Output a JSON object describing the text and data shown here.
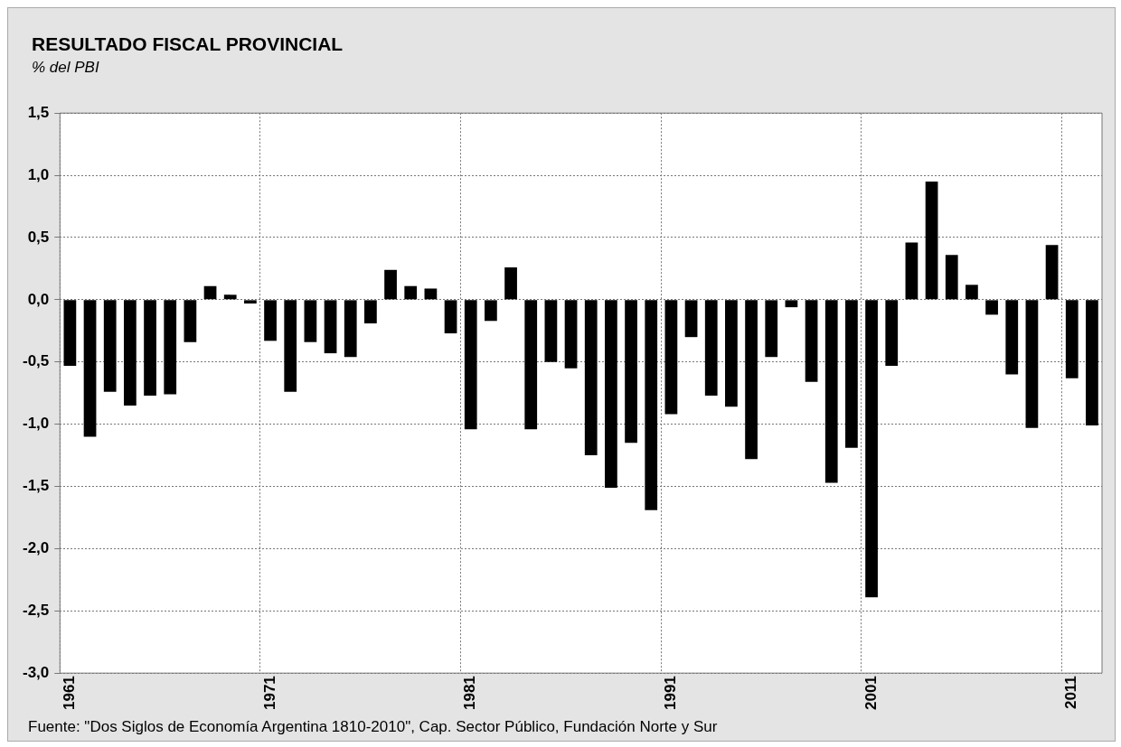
{
  "chart_data": {
    "type": "bar",
    "title": "RESULTADO FISCAL PROVINCIAL",
    "subtitle": "% del PBI",
    "categories": [
      "1961",
      null,
      null,
      null,
      null,
      null,
      null,
      null,
      null,
      null,
      "1971",
      null,
      null,
      null,
      null,
      null,
      null,
      null,
      null,
      null,
      "1981",
      null,
      null,
      null,
      null,
      null,
      null,
      null,
      null,
      null,
      "1991",
      null,
      null,
      null,
      null,
      null,
      null,
      null,
      null,
      null,
      "2001",
      null,
      null,
      null,
      null,
      null,
      null,
      null,
      null,
      null,
      "2011",
      null
    ],
    "values": [
      -0.53,
      -1.1,
      -0.74,
      -0.85,
      -0.77,
      -0.76,
      -0.34,
      0.11,
      0.04,
      -0.03,
      -0.33,
      -0.74,
      -0.34,
      -0.43,
      -0.46,
      -0.19,
      0.24,
      0.11,
      0.09,
      -0.27,
      -1.04,
      -0.17,
      0.26,
      -1.04,
      -0.5,
      -0.55,
      -1.25,
      -1.51,
      -1.15,
      -1.69,
      -0.92,
      -0.3,
      -0.77,
      -0.86,
      -1.28,
      -0.46,
      -0.06,
      -0.66,
      -1.47,
      -1.19,
      -2.39,
      -0.53,
      0.46,
      0.95,
      0.36,
      0.12,
      -0.12,
      -0.6,
      -1.03,
      0.44,
      -0.63,
      -1.01
    ],
    "color": "#000000",
    "ylim": [
      -3.0,
      1.5
    ],
    "yticks": [
      {
        "value": -3.0,
        "label": "-3,0"
      },
      {
        "value": -2.5,
        "label": "-2,5"
      },
      {
        "value": -2.0,
        "label": "-2,0"
      },
      {
        "value": -1.5,
        "label": "-1,5"
      },
      {
        "value": -1.0,
        "label": "-1,0"
      },
      {
        "value": -0.5,
        "label": "-0,5"
      },
      {
        "value": 0,
        "label": "0,0"
      },
      {
        "value": 0.5,
        "label": "0,5"
      },
      {
        "value": 1.0,
        "label": "1,0"
      },
      {
        "value": 1.5,
        "label": "1,5"
      }
    ],
    "grid": true,
    "legend": false,
    "annotations": [
      "Fuente: \"Dos Siglos de Economía Argentina 1810-2010\", Cap. Sector Público, Fundación Norte y Sur"
    ]
  }
}
